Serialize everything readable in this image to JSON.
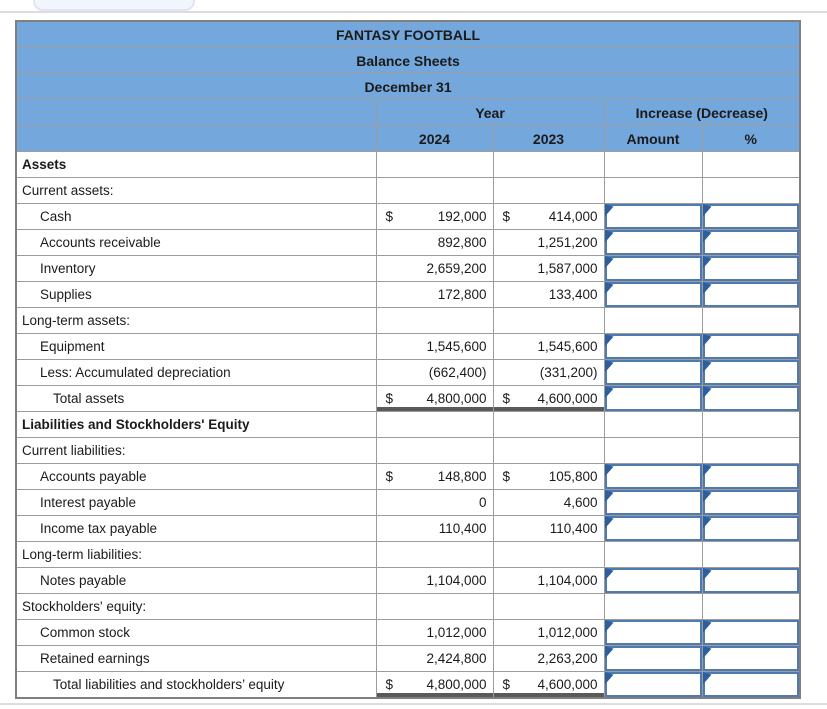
{
  "page": {
    "top_button_label": ""
  },
  "colors": {
    "header_blue": "#74a7dc",
    "grid_gray": "#9c9c9c",
    "outer_border": "#7f7f7f",
    "total_rule_dark": "#5a5a5a",
    "input_border_blue": "#4e7ab0",
    "input_marker_blue": "#2d5f9e"
  },
  "table": {
    "titles": [
      "FANTASY FOOTBALL",
      "Balance Sheets",
      "December 31"
    ],
    "column_groups": {
      "year": "Year",
      "increase": "Increase (Decrease)"
    },
    "columns": {
      "y2024": "2024",
      "y2023": "2023",
      "amount": "Amount",
      "percent": "%"
    },
    "rows": [
      {
        "label": "Assets"
      },
      {
        "label": "Current assets:"
      },
      {
        "label": "Cash",
        "cur24": "$",
        "v24": "192,000",
        "cur23": "$",
        "v23": "414,000"
      },
      {
        "label": "Accounts receivable",
        "v24": "892,800",
        "v23": "1,251,200"
      },
      {
        "label": "Inventory",
        "v24": "2,659,200",
        "v23": "1,587,000"
      },
      {
        "label": "Supplies",
        "v24": "172,800",
        "v23": "133,400"
      },
      {
        "label": "Long-term assets:"
      },
      {
        "label": "Equipment",
        "v24": "1,545,600",
        "v23": "1,545,600"
      },
      {
        "label": "Less: Accumulated depreciation",
        "v24": "(662,400)",
        "v23": "(331,200)"
      },
      {
        "label": "Total assets",
        "cur24": "$",
        "v24": "4,800,000",
        "cur23": "$",
        "v23": "4,600,000"
      },
      {
        "label": "Liabilities and Stockholders' Equity"
      },
      {
        "label": "Current liabilities:"
      },
      {
        "label": "Accounts payable",
        "cur24": "$",
        "v24": "148,800",
        "cur23": "$",
        "v23": "105,800"
      },
      {
        "label": "Interest payable",
        "v24": "0",
        "v23": "4,600"
      },
      {
        "label": "Income tax payable",
        "v24": "110,400",
        "v23": "110,400"
      },
      {
        "label": "Long-term liabilities:"
      },
      {
        "label": "Notes payable",
        "v24": "1,104,000",
        "v23": "1,104,000"
      },
      {
        "label": "Stockholders' equity:"
      },
      {
        "label": "Common stock",
        "v24": "1,012,000",
        "v23": "1,012,000"
      },
      {
        "label": "Retained earnings",
        "v24": "2,424,800",
        "v23": "2,263,200"
      },
      {
        "label": "Total liabilities and stockholders’ equity",
        "cur24": "$",
        "v24": "4,800,000",
        "cur23": "$",
        "v23": "4,600,000"
      }
    ]
  }
}
